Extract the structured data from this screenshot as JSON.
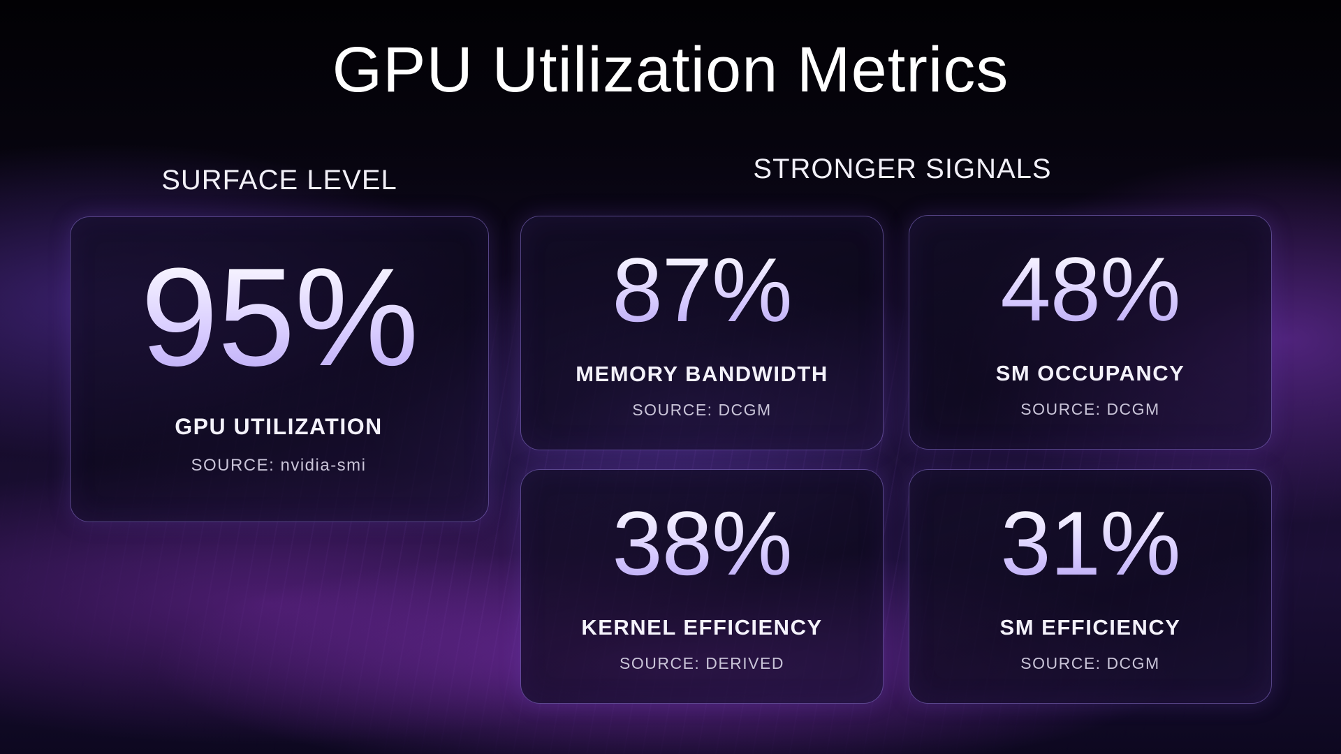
{
  "title": "GPU Utilization Metrics",
  "sections": {
    "surface": "SURFACE LEVEL",
    "stronger": "STRONGER SIGNALS"
  },
  "metrics": [
    {
      "value": "95%",
      "label": "GPU UTILIZATION",
      "source": "SOURCE: nvidia-smi"
    },
    {
      "value": "87%",
      "label": "MEMORY BANDWIDTH",
      "source": "SOURCE: DCGM"
    },
    {
      "value": "48%",
      "label": "SM OCCUPANCY",
      "source": "SOURCE: DCGM"
    },
    {
      "value": "38%",
      "label": "KERNEL EFFICIENCY",
      "source": "SOURCE: DERIVED"
    },
    {
      "value": "31%",
      "label": "SM EFFICIENCY",
      "source": "SOURCE: DCGM"
    }
  ],
  "colors": {
    "background": "#05040a",
    "accent": "#b8a6f4",
    "card_border": "#aa8cff"
  }
}
